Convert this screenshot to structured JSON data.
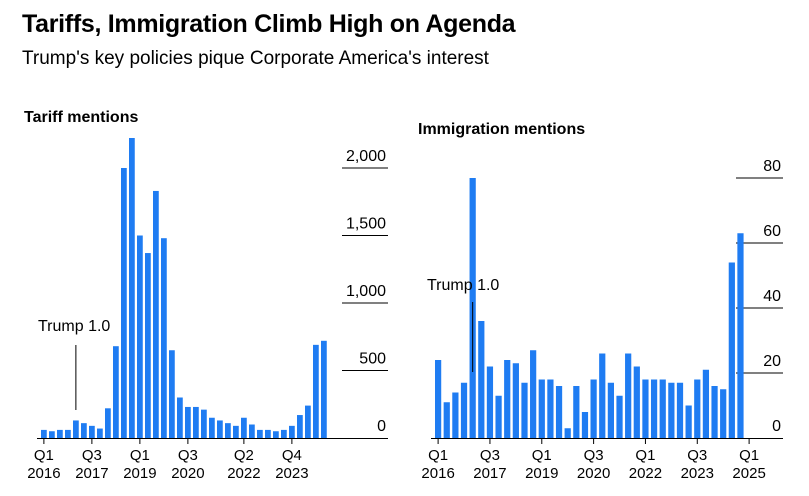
{
  "header": {
    "title": "Tariffs, Immigration Climb High on Agenda",
    "subtitle": "Trump's key policies pique Corporate America's interest"
  },
  "colors": {
    "bar": "#1f7cf2",
    "text": "#000000",
    "grid": "#000000"
  },
  "chart_data": [
    {
      "type": "bar",
      "title": "Tariff mentions",
      "ylim": [
        0,
        2000
      ],
      "yticks": [
        0,
        500,
        1000,
        1500,
        2000
      ],
      "ytick_labels": [
        "0",
        "500",
        "1,000",
        "1,500",
        "2,000"
      ],
      "x_tick_labels": [
        {
          "q": "Q1",
          "y": "2016",
          "index": 0
        },
        {
          "q": "Q3",
          "y": "2017",
          "index": 6
        },
        {
          "q": "Q1",
          "y": "2019",
          "index": 12
        },
        {
          "q": "Q3",
          "y": "2020",
          "index": 18
        },
        {
          "q": "Q2",
          "y": "2022",
          "index": 25
        },
        {
          "q": "Q4",
          "y": "2023",
          "index": 31
        }
      ],
      "annotation": {
        "text": "Trump 1.0",
        "index": 4
      },
      "values": [
        60,
        50,
        60,
        60,
        130,
        110,
        90,
        70,
        220,
        680,
        2000,
        2250,
        1500,
        1370,
        1830,
        1480,
        650,
        300,
        230,
        230,
        210,
        150,
        130,
        110,
        90,
        150,
        100,
        60,
        60,
        50,
        60,
        90,
        170,
        240,
        690,
        720
      ]
    },
    {
      "type": "bar",
      "title": "Immigration mentions",
      "ylim": [
        0,
        80
      ],
      "yticks": [
        0,
        20,
        40,
        60,
        80
      ],
      "ytick_labels": [
        "0",
        "20",
        "40",
        "60",
        "80"
      ],
      "x_tick_labels": [
        {
          "q": "Q1",
          "y": "2016",
          "index": 0
        },
        {
          "q": "Q3",
          "y": "2017",
          "index": 6
        },
        {
          "q": "Q1",
          "y": "2019",
          "index": 12
        },
        {
          "q": "Q3",
          "y": "2020",
          "index": 18
        },
        {
          "q": "Q1",
          "y": "2022",
          "index": 24
        },
        {
          "q": "Q3",
          "y": "2023",
          "index": 30
        },
        {
          "q": "Q1",
          "y": "2025",
          "index": 36
        }
      ],
      "annotation": {
        "text": "Trump 1.0",
        "index": 4
      },
      "values": [
        24,
        11,
        14,
        17,
        80,
        36,
        22,
        13,
        24,
        23,
        17,
        27,
        18,
        18,
        16,
        3,
        16,
        8,
        18,
        26,
        17,
        13,
        26,
        22,
        18,
        18,
        18,
        17,
        17,
        10,
        18,
        21,
        16,
        15,
        54,
        63
      ]
    }
  ]
}
